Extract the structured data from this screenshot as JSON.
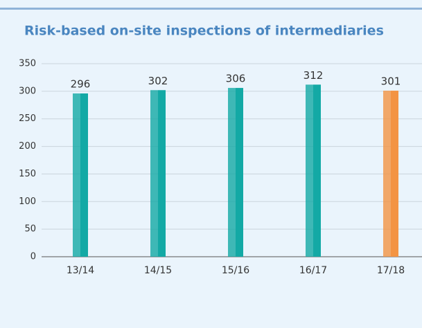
{
  "chart_data": {
    "type": "bar",
    "title": "Risk-based on-site inspections of intermediaries",
    "categories": [
      "13/14",
      "14/15",
      "15/16",
      "16/17",
      "17/18"
    ],
    "values": [
      296,
      302,
      306,
      312,
      301
    ],
    "colors": [
      "#13a9a5",
      "#13a9a5",
      "#13a9a5",
      "#13a9a5",
      "#f39443"
    ],
    "ylim": [
      0,
      350
    ],
    "yticks": [
      0,
      50,
      100,
      150,
      200,
      250,
      300,
      350
    ],
    "grid": true
  }
}
